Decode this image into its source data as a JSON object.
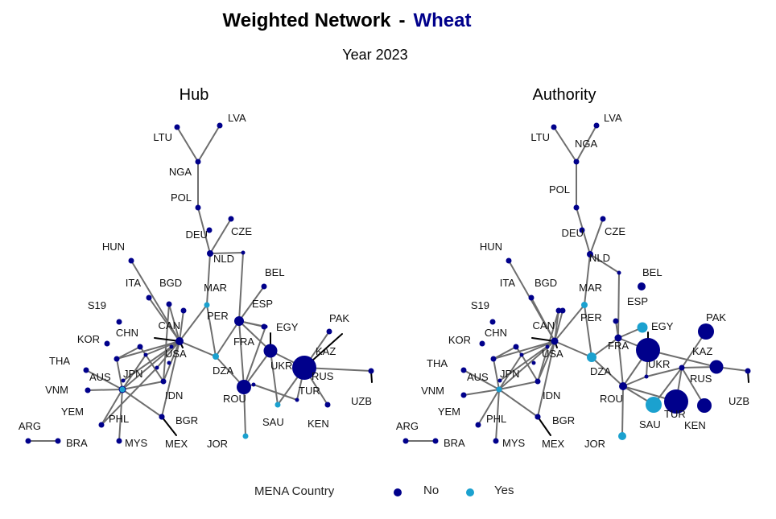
{
  "title": {
    "main": "Weighted Network",
    "sep": "-",
    "commodity": "Wheat"
  },
  "subtitle": "Year 2023",
  "colors": {
    "accent": "#00008b",
    "no": "#00008b",
    "yes": "#1ba1cf",
    "edge": "#6e6e6e",
    "spike": "#000000"
  },
  "legend": {
    "title": "MENA Country",
    "items": [
      {
        "label": "No",
        "color": "#00008b"
      },
      {
        "label": "Yes",
        "color": "#1ba1cf"
      }
    ]
  },
  "panels": [
    {
      "title": "Hub",
      "nodes": [
        {
          "id": "LVA",
          "mena": false
        },
        {
          "id": "LTU",
          "mena": false
        },
        {
          "id": "NGA",
          "mena": false
        },
        {
          "id": "POL",
          "mena": false
        },
        {
          "id": "DEU",
          "mena": false
        },
        {
          "id": "CZE",
          "mena": false
        },
        {
          "id": "NLD",
          "mena": false
        },
        {
          "id": "HUN",
          "mena": false
        },
        {
          "id": "BEL",
          "mena": false
        },
        {
          "id": "ITA",
          "mena": false
        },
        {
          "id": "BGD",
          "mena": false
        },
        {
          "id": "MAR",
          "mena": true
        },
        {
          "id": "ESP",
          "mena": false
        },
        {
          "id": "S19",
          "mena": false
        },
        {
          "id": "PER",
          "mena": false
        },
        {
          "id": "CAN",
          "mena": false
        },
        {
          "id": "PAK",
          "mena": false
        },
        {
          "id": "EGY",
          "mena": true
        },
        {
          "id": "CHN",
          "mena": false
        },
        {
          "id": "FRA",
          "mena": false
        },
        {
          "id": "KOR",
          "mena": false
        },
        {
          "id": "USA",
          "mena": false
        },
        {
          "id": "KAZ",
          "mena": false
        },
        {
          "id": "UKR",
          "mena": false
        },
        {
          "id": "THA",
          "mena": false
        },
        {
          "id": "DZA",
          "mena": true
        },
        {
          "id": "AUS",
          "mena": false
        },
        {
          "id": "JPN",
          "mena": false
        },
        {
          "id": "RUS",
          "mena": false
        },
        {
          "id": "VNM",
          "mena": false
        },
        {
          "id": "TUR",
          "mena": false
        },
        {
          "id": "IDN",
          "mena": false
        },
        {
          "id": "UZB",
          "mena": false
        },
        {
          "id": "ROU",
          "mena": false
        },
        {
          "id": "YEM",
          "mena": true
        },
        {
          "id": "PHL",
          "mena": false
        },
        {
          "id": "BGR",
          "mena": false
        },
        {
          "id": "SAU",
          "mena": true
        },
        {
          "id": "KEN",
          "mena": false
        },
        {
          "id": "ARG",
          "mena": false
        },
        {
          "id": "BRA",
          "mena": false
        },
        {
          "id": "MYS",
          "mena": false
        },
        {
          "id": "MEX",
          "mena": false
        },
        {
          "id": "JOR",
          "mena": true
        }
      ]
    },
    {
      "title": "Authority",
      "nodes": [
        {
          "id": "LVA",
          "mena": false
        },
        {
          "id": "LTU",
          "mena": false
        },
        {
          "id": "NGA",
          "mena": false
        },
        {
          "id": "POL",
          "mena": false
        },
        {
          "id": "DEU",
          "mena": false
        },
        {
          "id": "CZE",
          "mena": false
        },
        {
          "id": "NLD",
          "mena": false
        },
        {
          "id": "HUN",
          "mena": false
        },
        {
          "id": "BEL",
          "mena": false
        },
        {
          "id": "ITA",
          "mena": false
        },
        {
          "id": "BGD",
          "mena": false
        },
        {
          "id": "MAR",
          "mena": true
        },
        {
          "id": "ESP",
          "mena": false
        },
        {
          "id": "S19",
          "mena": false
        },
        {
          "id": "PER",
          "mena": false
        },
        {
          "id": "CAN",
          "mena": false
        },
        {
          "id": "PAK",
          "mena": false
        },
        {
          "id": "EGY",
          "mena": true
        },
        {
          "id": "CHN",
          "mena": false
        },
        {
          "id": "FRA",
          "mena": false
        },
        {
          "id": "KOR",
          "mena": false
        },
        {
          "id": "USA",
          "mena": false
        },
        {
          "id": "KAZ",
          "mena": false
        },
        {
          "id": "UKR",
          "mena": false
        },
        {
          "id": "THA",
          "mena": false
        },
        {
          "id": "DZA",
          "mena": true
        },
        {
          "id": "AUS",
          "mena": false
        },
        {
          "id": "JPN",
          "mena": false
        },
        {
          "id": "RUS",
          "mena": false
        },
        {
          "id": "VNM",
          "mena": false
        },
        {
          "id": "TUR",
          "mena": false
        },
        {
          "id": "IDN",
          "mena": false
        },
        {
          "id": "UZB",
          "mena": false
        },
        {
          "id": "ROU",
          "mena": false
        },
        {
          "id": "YEM",
          "mena": true
        },
        {
          "id": "PHL",
          "mena": false
        },
        {
          "id": "BGR",
          "mena": false
        },
        {
          "id": "SAU",
          "mena": true
        },
        {
          "id": "KEN",
          "mena": false
        },
        {
          "id": "ARG",
          "mena": false
        },
        {
          "id": "BRA",
          "mena": false
        },
        {
          "id": "MYS",
          "mena": false
        },
        {
          "id": "MEX",
          "mena": false
        },
        {
          "id": "JOR",
          "mena": true
        }
      ]
    }
  ]
}
